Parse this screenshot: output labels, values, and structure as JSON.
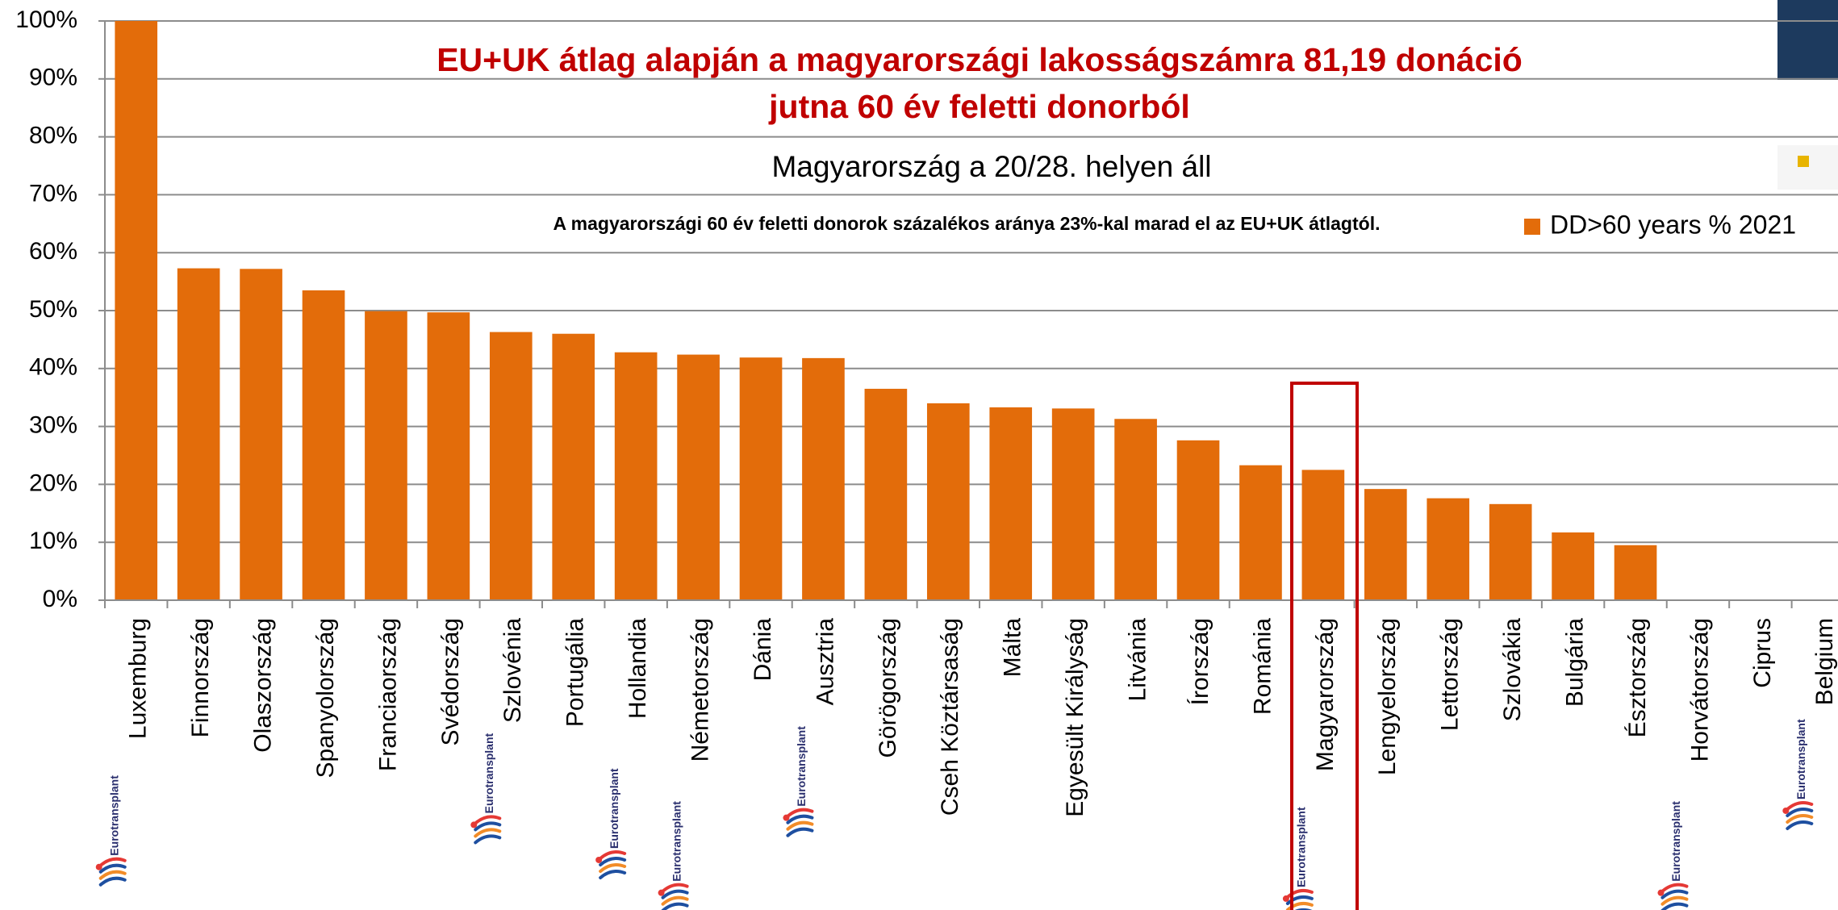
{
  "chart_data": {
    "type": "bar",
    "title_lines": [
      "EU+UK átlag alapján a magyarországi lakosságszámra 81,19 donáció",
      "jutna 60 év feletti donorból"
    ],
    "subtitle": "Magyarország a 20/28. helyen áll",
    "note": "A magyarországi 60 év feletti donorok százalékos aránya 23%-kal marad el az EU+UK átlagtól.",
    "logo_text": "Eurotransplant",
    "categories": [
      "Luxemburg",
      "Finnország",
      "Olaszország",
      "Spanyolország",
      "Franciaország",
      "Svédország",
      "Szlovénia",
      "Portugália",
      "Hollandia",
      "Németország",
      "Dánia",
      "Ausztria",
      "Görögország",
      "Cseh Köztársaság",
      "Málta",
      "Egyesült Királyság",
      "Litvánia",
      "Írország",
      "Románia",
      "Magyarország",
      "Lengyelország",
      "Lettország",
      "Szlovákia",
      "Bulgária",
      "Észtország",
      "Horvátország",
      "Ciprus",
      "Belgium"
    ],
    "series": [
      {
        "name": "DD>60 years % 2021",
        "color": "#e36c0a",
        "values": [
          100,
          57.3,
          57.2,
          53.5,
          49.9,
          49.7,
          46.3,
          46.0,
          42.8,
          42.4,
          41.9,
          41.8,
          36.5,
          34.0,
          33.3,
          33.1,
          31.3,
          27.6,
          23.3,
          22.5,
          19.2,
          17.6,
          16.6,
          11.7,
          9.5,
          0,
          0,
          0
        ]
      }
    ],
    "ylim": [
      0,
      100
    ],
    "yticks": [
      {
        "value": 0,
        "label": "0%"
      },
      {
        "value": 10,
        "label": "10%"
      },
      {
        "value": 20,
        "label": "20%"
      },
      {
        "value": 30,
        "label": "30%"
      },
      {
        "value": 40,
        "label": "40%"
      },
      {
        "value": 50,
        "label": "50%"
      },
      {
        "value": 60,
        "label": "60%"
      },
      {
        "value": 70,
        "label": "70%"
      },
      {
        "value": 80,
        "label": "80%"
      },
      {
        "value": 90,
        "label": "90%"
      },
      {
        "value": 100,
        "label": "100%"
      }
    ],
    "grid": true,
    "legend": "upper right"
  }
}
